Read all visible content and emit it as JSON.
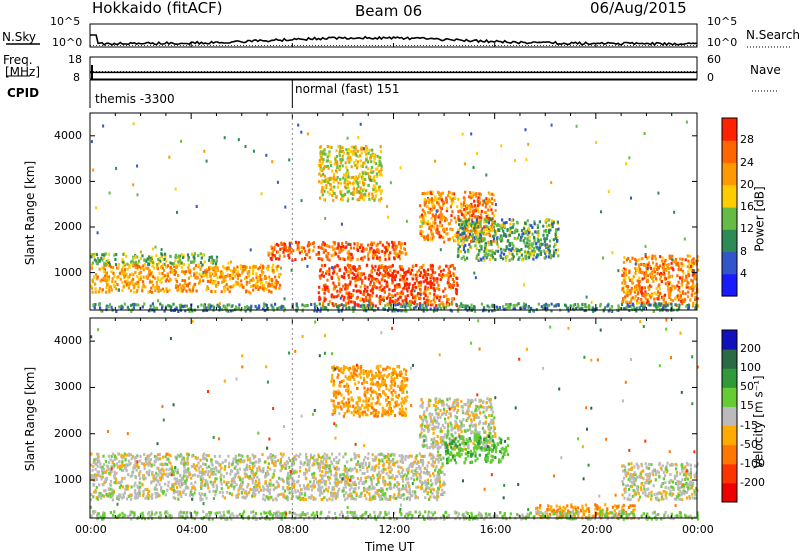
{
  "header": {
    "station": "Hokkaido (fitACF)",
    "beam": "Beam 06",
    "date": "06/Aug/2015"
  },
  "top_panels": {
    "nsky_label": "N.Sky",
    "nsearch_label": "N.Search",
    "freq_label": "Freq.",
    "freq_unit": "[MHz]",
    "nave_label": "Nave",
    "cpid_label": "CPID",
    "left_ticks": {
      "nsky_hi": "10^5",
      "nsky_lo": "10^0",
      "freq_hi": "18",
      "freq_lo": "8"
    },
    "right_ticks": {
      "nsearch_hi": "10^5",
      "nsearch_lo": "10^0",
      "nave_hi": "60",
      "nave_lo": "0"
    },
    "cpid_modes": [
      {
        "label": "themis -3300",
        "start_hour": 0.0
      },
      {
        "label": "normal (fast) 151",
        "start_hour": 8.0
      }
    ]
  },
  "colorbars": {
    "power": {
      "label": "Power [dB]",
      "ticks": [
        "4",
        "8",
        "12",
        "16",
        "20",
        "24",
        "28"
      ],
      "colors": [
        "#1a1aff",
        "#3355cc",
        "#2e8b57",
        "#66bb44",
        "#ffcc00",
        "#ff9900",
        "#ff6600",
        "#ff2200"
      ]
    },
    "velocity": {
      "label": "Velocity [m s⁻¹]",
      "ticks": [
        "200",
        "100",
        "50",
        "15",
        "-15",
        "-50",
        "-100",
        "-200"
      ],
      "colors": [
        "#1111bb",
        "#2a6a44",
        "#2e9a3a",
        "#66cc33",
        "#bbbbbb",
        "#ffaa00",
        "#ff7700",
        "#ff3300",
        "#ee0000"
      ]
    }
  },
  "chart_data": {
    "type": "heatmap",
    "title": "Hokkaido (fitACF) Beam 06 06/Aug/2015",
    "xlabel": "Time UT",
    "ylabel": "Slant Range [km]",
    "x_ticks": [
      "00:00",
      "04:00",
      "08:00",
      "12:00",
      "16:00",
      "20:00",
      "00:00"
    ],
    "xlim_hours": [
      0,
      24
    ],
    "y_ticks": [
      "1000",
      "2000",
      "3000",
      "4000"
    ],
    "ylim_km": [
      180,
      4500
    ],
    "panels": [
      {
        "name": "Power",
        "regions": [
          {
            "t": [
              0.0,
              7.5
            ],
            "r": [
              600,
              1200
            ],
            "value": 22
          },
          {
            "t": [
              0.0,
              5.0
            ],
            "r": [
              1200,
              1450
            ],
            "value": 14
          },
          {
            "t": [
              7.0,
              12.5
            ],
            "r": [
              1300,
              1700
            ],
            "value": 26
          },
          {
            "t": [
              9.0,
              14.5
            ],
            "r": [
              300,
              1200
            ],
            "value": 28
          },
          {
            "t": [
              13.0,
              16.0
            ],
            "r": [
              1700,
              2800
            ],
            "value": 24
          },
          {
            "t": [
              9.0,
              11.5
            ],
            "r": [
              2600,
              3800
            ],
            "value": 18
          },
          {
            "t": [
              14.5,
              18.5
            ],
            "r": [
              1300,
              2200
            ],
            "value": 12
          },
          {
            "t": [
              21.0,
              24.0
            ],
            "r": [
              300,
              1400
            ],
            "value": 24
          },
          {
            "t": [
              0.0,
              24.0
            ],
            "r": [
              180,
              350
            ],
            "value": 10
          }
        ]
      },
      {
        "name": "Velocity",
        "regions": [
          {
            "t": [
              0.0,
              14.0
            ],
            "r": [
              600,
              1600
            ],
            "value": 0
          },
          {
            "t": [
              9.5,
              12.5
            ],
            "r": [
              2400,
              3500
            ],
            "value": -40
          },
          {
            "t": [
              13.0,
              16.0
            ],
            "r": [
              1700,
              2800
            ],
            "value": 0
          },
          {
            "t": [
              14.0,
              16.5
            ],
            "r": [
              1400,
              2000
            ],
            "value": 40
          },
          {
            "t": [
              17.5,
              21.5
            ],
            "r": [
              200,
              500
            ],
            "value": -50
          },
          {
            "t": [
              21.0,
              24.0
            ],
            "r": [
              600,
              1400
            ],
            "value": 0
          },
          {
            "t": [
              0.0,
              24.0
            ],
            "r": [
              180,
              350
            ],
            "value": 20
          }
        ]
      }
    ],
    "nsky_scale": "log",
    "freq_mhz": 11,
    "nave": 20
  }
}
